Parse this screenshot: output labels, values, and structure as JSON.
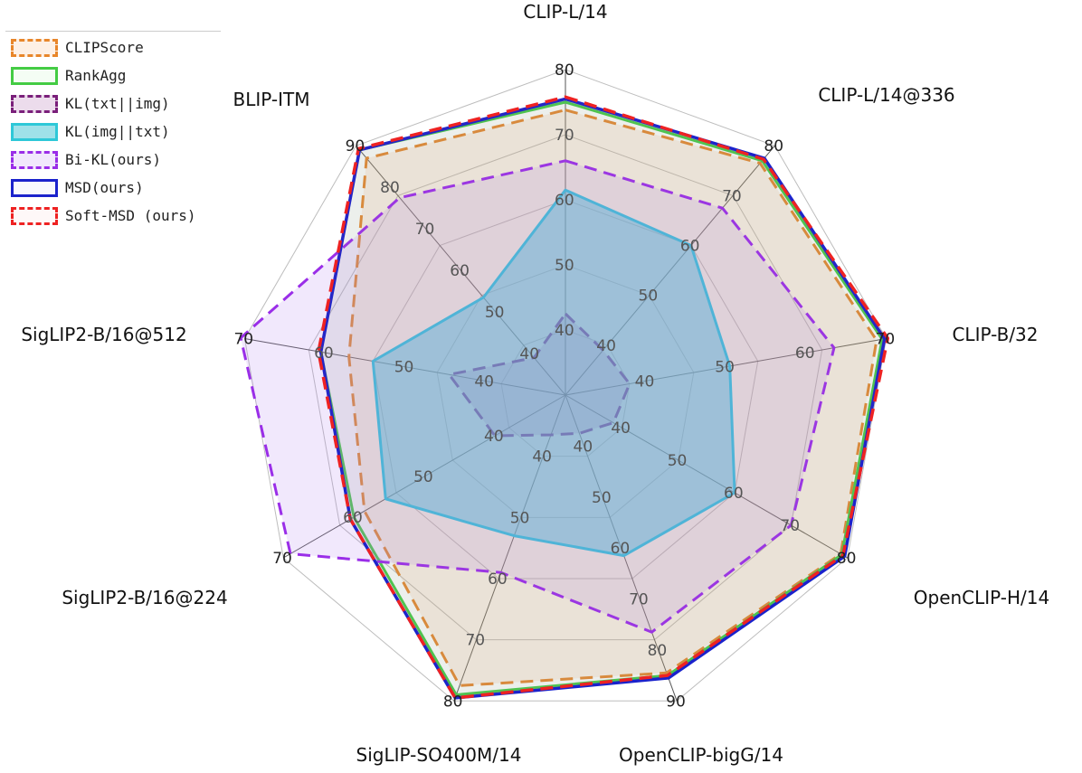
{
  "chart_data": {
    "type": "radar",
    "axes": [
      {
        "name": "CLIP-L/14",
        "min": 30,
        "max": 80,
        "ticks": [
          40,
          50,
          60,
          70,
          80
        ]
      },
      {
        "name": "CLIP-L/14@336",
        "min": 30,
        "max": 80,
        "ticks": [
          40,
          50,
          60,
          70,
          80
        ]
      },
      {
        "name": "CLIP-B/32",
        "min": 30,
        "max": 70,
        "ticks": [
          40,
          50,
          60,
          70
        ]
      },
      {
        "name": "OpenCLIP-H/14",
        "min": 30,
        "max": 80,
        "ticks": [
          40,
          50,
          60,
          70,
          80
        ]
      },
      {
        "name": "OpenCLIP-bigG/14",
        "min": 30,
        "max": 90,
        "ticks": [
          40,
          50,
          60,
          70,
          80,
          90
        ]
      },
      {
        "name": "SigLIP-SO400M/14",
        "min": 30,
        "max": 80,
        "ticks": [
          40,
          50,
          60,
          70,
          80
        ]
      },
      {
        "name": "SigLIP2-B/16@224",
        "min": 30,
        "max": 70,
        "ticks": [
          40,
          50,
          60,
          70
        ]
      },
      {
        "name": "SigLIP2-B/16@512",
        "min": 30,
        "max": 70,
        "ticks": [
          40,
          50,
          60,
          70
        ]
      },
      {
        "name": "BLIP-ITM",
        "min": 30,
        "max": 90,
        "ticks": [
          40,
          50,
          60,
          70,
          80,
          90
        ]
      }
    ],
    "series": [
      {
        "name": "CLIPScore",
        "color": "#e8862a",
        "fill": "rgba(244,170,110,0.18)",
        "dash": "14,8",
        "width": 3,
        "values": [
          73.8,
          76.5,
          68.8,
          78.8,
          84.5,
          77.5,
          58.5,
          57.0,
          87.0
        ]
      },
      {
        "name": "RankAgg",
        "color": "#44cc44",
        "fill": "rgba(120,230,120,0.08)",
        "dash": "",
        "width": 3,
        "values": [
          75.0,
          77.0,
          69.5,
          79.0,
          85.0,
          79.0,
          60.0,
          60.5,
          89.0
        ]
      },
      {
        "name": "KL(txt||img)",
        "color": "#7a1f7a",
        "fill": "rgba(150,60,150,0.18)",
        "dash": "14,8",
        "width": 3,
        "values": [
          42.5,
          39.0,
          38.0,
          38.5,
          37.5,
          36.5,
          40.0,
          44.5,
          39.0
        ]
      },
      {
        "name": "KL(img||txt)",
        "color": "#2ec8d8",
        "fill": "rgba(80,200,215,0.55)",
        "dash": "",
        "width": 3,
        "values": [
          61.5,
          60.0,
          50.5,
          60.0,
          61.5,
          53.0,
          55.5,
          54.0,
          53.5
        ]
      },
      {
        "name": "Bi-KL(ours)",
        "color": "#9a2ee8",
        "fill": "rgba(180,130,240,0.18)",
        "dash": "14,8",
        "width": 3,
        "values": [
          66.0,
          67.5,
          63.5,
          70.0,
          76.5,
          59.0,
          69.0,
          70.5,
          77.5
        ]
      },
      {
        "name": "MSD(ours)",
        "color": "#1a22cc",
        "fill": "rgba(120,130,230,0.06)",
        "dash": "",
        "width": 3.5,
        "values": [
          75.5,
          77.5,
          69.8,
          79.5,
          85.5,
          79.5,
          60.5,
          60.5,
          89.0
        ]
      },
      {
        "name": "Soft-MSD (ours)",
        "color": "#ee2222",
        "fill": "rgba(240,120,120,0.05)",
        "dash": "14,8",
        "width": 3.5,
        "values": [
          75.8,
          77.3,
          70.2,
          79.2,
          85.0,
          79.5,
          60.5,
          60.8,
          89.3
        ]
      }
    ],
    "grid": true,
    "legend_position": "top-left"
  }
}
